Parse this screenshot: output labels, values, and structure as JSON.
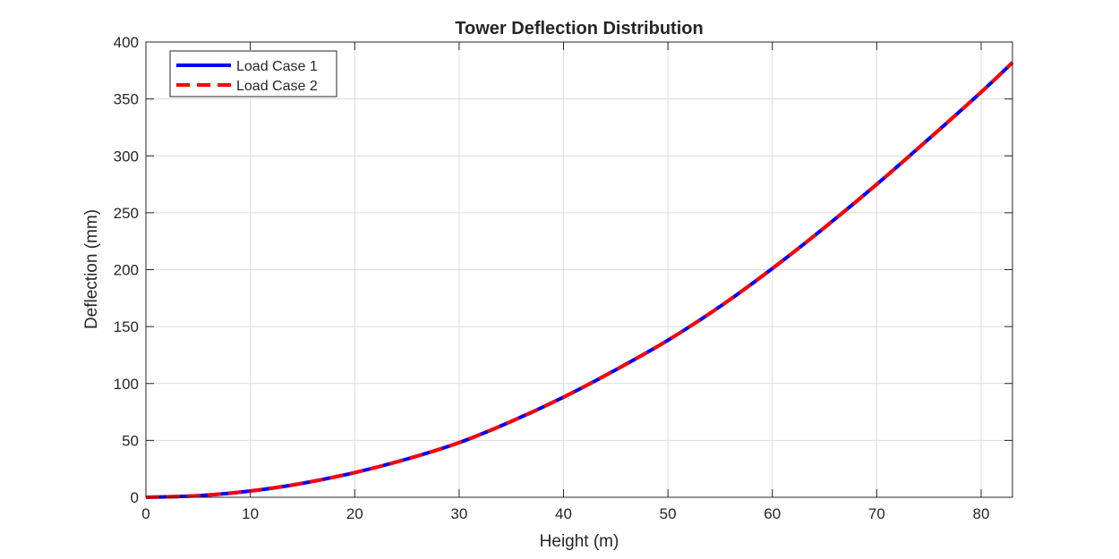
{
  "chart_data": {
    "type": "line",
    "title": "Tower Deflection Distribution",
    "xlabel": "Height (m)",
    "ylabel": "Deflection (mm)",
    "xlim": [
      0,
      83
    ],
    "ylim": [
      0,
      400
    ],
    "xticks": [
      0,
      10,
      20,
      30,
      40,
      50,
      60,
      70,
      80
    ],
    "yticks": [
      0,
      50,
      100,
      150,
      200,
      250,
      300,
      350,
      400
    ],
    "grid": true,
    "legend_position": "top-left",
    "series": [
      {
        "name": "Load Case 1",
        "color": "#0000ff",
        "line_style": "solid",
        "x": [
          0,
          5,
          10,
          15,
          20,
          25,
          30,
          35,
          40,
          45,
          50,
          55,
          60,
          65,
          70,
          75,
          80,
          83
        ],
        "y": [
          0,
          1.4,
          5.5,
          12.3,
          21.7,
          33.6,
          48,
          66.7,
          88,
          112,
          138,
          167.7,
          201,
          237,
          275,
          315,
          356,
          382
        ]
      },
      {
        "name": "Load Case 2",
        "color": "#ff0000",
        "line_style": "dashed",
        "x": [
          0,
          5,
          10,
          15,
          20,
          25,
          30,
          35,
          40,
          45,
          50,
          55,
          60,
          65,
          70,
          75,
          80,
          83
        ],
        "y": [
          0,
          1.4,
          5.5,
          12.3,
          21.7,
          33.6,
          48,
          66.7,
          88,
          112,
          138,
          167.7,
          201,
          237,
          275,
          315,
          356,
          382
        ]
      }
    ]
  }
}
